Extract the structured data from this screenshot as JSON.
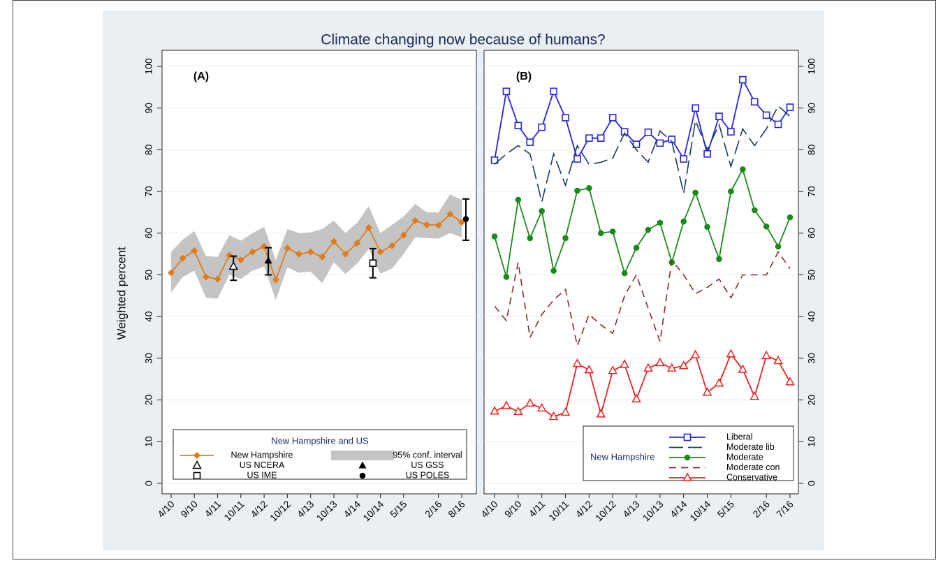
{
  "title": "Climate changing now because of humans?",
  "ylabel": "Weighted percent",
  "chart_data": [
    {
      "type": "line",
      "panel_label": "(A)",
      "categories": [
        "4/10",
        null,
        "9/10",
        null,
        "4/11",
        null,
        "10/11",
        null,
        "4/12",
        null,
        "10/12",
        null,
        "4/13",
        null,
        "10/13",
        null,
        "4/14",
        null,
        "10/14",
        null,
        "5/15",
        null,
        null,
        "2/16",
        null,
        "8/16"
      ],
      "ylim": [
        0,
        100
      ],
      "yticks": [
        0,
        10,
        20,
        30,
        40,
        50,
        60,
        70,
        80,
        90,
        100
      ],
      "grid": true,
      "y_axis_side": "left",
      "legend": {
        "title": "New Hampshire and US",
        "position": "bottom"
      },
      "series": [
        {
          "name": "New Hampshire",
          "color": "#e07b1a",
          "marker": "diamond",
          "values": [
            50.5,
            54,
            55.8,
            49.5,
            49,
            54.7,
            53.6,
            55.5,
            56.8,
            48.8,
            56.4,
            55,
            55.5,
            54.3,
            58,
            55,
            57.6,
            61.3,
            55.5,
            57,
            59.5,
            63,
            62,
            61.9,
            64.6,
            62.6
          ]
        },
        {
          "name": "95% conf. interval",
          "type": "band",
          "color": "#c4c4c4",
          "lower": [
            45.7,
            49.5,
            51,
            44.5,
            44.3,
            50,
            49,
            51,
            52,
            44,
            51.8,
            50.5,
            50.8,
            48,
            53,
            50.2,
            52.7,
            56.2,
            50.3,
            51.5,
            55,
            59,
            58.8,
            58.7,
            60,
            59
          ],
          "upper": [
            55.5,
            58.5,
            60.5,
            54.5,
            54.3,
            59.5,
            58.2,
            60,
            61.5,
            53.5,
            61,
            60,
            60.2,
            61,
            63,
            60,
            62.5,
            66.5,
            60,
            62,
            64,
            67,
            65,
            65,
            69.3,
            68
          ]
        },
        {
          "name": "US NCERA",
          "color": "#000000",
          "marker": "triangle-open",
          "values": [
            null,
            null,
            null,
            null,
            null,
            52,
            null,
            null,
            null,
            null,
            null,
            null,
            null,
            null,
            null,
            null,
            null,
            null,
            null,
            null,
            null,
            null,
            null,
            null,
            null,
            null
          ],
          "ci": [
            null,
            null,
            null,
            null,
            null,
            [
              48.7,
              54.5
            ],
            null,
            null,
            null,
            null,
            null,
            null,
            null,
            null,
            null,
            null,
            null,
            null,
            null,
            null,
            null,
            null,
            null,
            null,
            null,
            null
          ]
        },
        {
          "name": "US GSS",
          "color": "#000000",
          "marker": "triangle-filled",
          "values": [
            null,
            null,
            null,
            null,
            null,
            null,
            null,
            null,
            53.4,
            null,
            null,
            null,
            null,
            null,
            null,
            null,
            null,
            null,
            null,
            null,
            null,
            null,
            null,
            null,
            null,
            null
          ],
          "ci": [
            null,
            null,
            null,
            null,
            null,
            null,
            null,
            null,
            [
              50,
              56.5
            ],
            null,
            null,
            null,
            null,
            null,
            null,
            null,
            null,
            null,
            null,
            null,
            null,
            null,
            null,
            null,
            null,
            null
          ]
        },
        {
          "name": "US IME",
          "color": "#000000",
          "marker": "square-open",
          "values": [
            null,
            null,
            null,
            null,
            null,
            null,
            null,
            null,
            null,
            null,
            null,
            null,
            null,
            null,
            null,
            null,
            null,
            52.8,
            null,
            null,
            null,
            null,
            null,
            null,
            null,
            null
          ],
          "ci": [
            null,
            null,
            null,
            null,
            null,
            null,
            null,
            null,
            null,
            null,
            null,
            null,
            null,
            null,
            null,
            null,
            null,
            [
              49.3,
              56.3
            ],
            null,
            null,
            null,
            null,
            null,
            null,
            null,
            null
          ]
        },
        {
          "name": "US POLES",
          "color": "#000000",
          "marker": "circle-filled",
          "values": [
            null,
            null,
            null,
            null,
            null,
            null,
            null,
            null,
            null,
            null,
            null,
            null,
            null,
            null,
            null,
            null,
            null,
            null,
            null,
            null,
            null,
            null,
            null,
            null,
            null,
            63.4
          ],
          "ci": [
            null,
            null,
            null,
            null,
            null,
            null,
            null,
            null,
            null,
            null,
            null,
            null,
            null,
            null,
            null,
            null,
            null,
            null,
            null,
            null,
            null,
            null,
            null,
            null,
            null,
            [
              58.3,
              68.2
            ]
          ]
        }
      ]
    },
    {
      "type": "line",
      "panel_label": "(B)",
      "categories": [
        "4/10",
        null,
        "9/10",
        null,
        "4/11",
        null,
        "10/11",
        null,
        "4/12",
        null,
        "10/12",
        null,
        "4/13",
        null,
        "10/13",
        null,
        "4/14",
        null,
        "10/14",
        null,
        "5/15",
        null,
        null,
        "2/16",
        null,
        "7/16"
      ],
      "ylim": [
        0,
        100
      ],
      "yticks": [
        0,
        10,
        20,
        30,
        40,
        50,
        60,
        70,
        80,
        90,
        100
      ],
      "grid": true,
      "y_axis_side": "right",
      "legend": {
        "title": "New Hampshire",
        "position": "bottom-right"
      },
      "series": [
        {
          "name": "Liberal",
          "color": "#2424e6",
          "marker": "square-open",
          "dash": "solid",
          "values": [
            77.5,
            94,
            85.8,
            81.8,
            85.4,
            94,
            87.7,
            77.8,
            82.8,
            82.8,
            87.7,
            84.3,
            81.3,
            84.2,
            81.6,
            82.5,
            77.8,
            90,
            79,
            88,
            84.3,
            96.8,
            91.5,
            88.3,
            86.1,
            90.2
          ]
        },
        {
          "name": "Moderate lib",
          "color": "#1a3a5c",
          "marker": "none",
          "dash": "long",
          "values": [
            76.5,
            79,
            81,
            79,
            67.5,
            79,
            71.5,
            81,
            76.5,
            77,
            78,
            84,
            80,
            77,
            84.5,
            82,
            69.5,
            87,
            80,
            86,
            76,
            85,
            81,
            85,
            90.5,
            88
          ]
        },
        {
          "name": "Moderate",
          "color": "#1a8a1a",
          "marker": "circle-filled",
          "dash": "solid",
          "values": [
            59.2,
            49.5,
            68,
            58.8,
            65.3,
            51,
            58.8,
            70.2,
            70.8,
            60,
            60.4,
            50.4,
            56.5,
            60.8,
            62.5,
            53,
            62.8,
            69.7,
            61.5,
            53.8,
            70,
            75.3,
            65.5,
            61.6,
            56.8,
            63.8
          ]
        },
        {
          "name": "Moderate con",
          "color": "#8b2a2a",
          "marker": "none",
          "dash": "medium",
          "values": [
            42.5,
            39,
            53,
            35,
            40.5,
            44,
            46.5,
            33,
            40.5,
            38,
            36,
            45,
            50,
            42,
            34,
            53.5,
            50,
            45.5,
            47,
            49,
            44.5,
            50,
            50,
            50,
            55.5,
            51.5
          ]
        },
        {
          "name": "Conservative",
          "color": "#ee2020",
          "marker": "triangle-open",
          "dash": "solid",
          "values": [
            17.3,
            18.6,
            17.2,
            19.2,
            18,
            16,
            17,
            28.7,
            27.2,
            16.6,
            27,
            28.5,
            20.2,
            27.6,
            28.9,
            27.6,
            28.2,
            30.8,
            21.8,
            24,
            31,
            27.3,
            20.8,
            30.6,
            29.4,
            24.3
          ]
        }
      ]
    }
  ]
}
